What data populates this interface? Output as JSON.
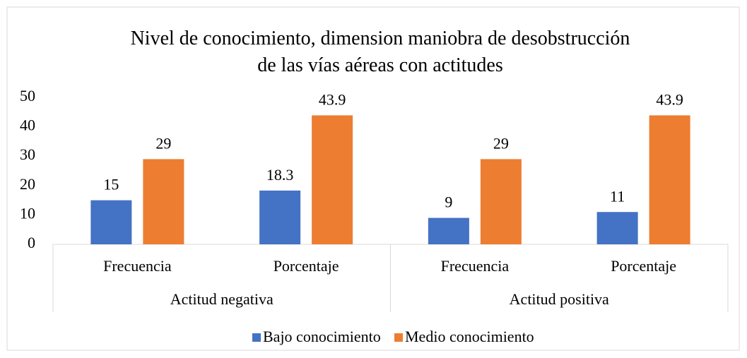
{
  "chart_data": {
    "type": "bar",
    "title": "Nivel de conocimiento, dimension maniobra de desobstrucción de las vías aéreas con actitudes",
    "groups": [
      {
        "name": "Actitud negativa",
        "categories": [
          "Frecuencia",
          "Porcentaje"
        ]
      },
      {
        "name": "Actitud positiva",
        "categories": [
          "Frecuencia",
          "Porcentaje"
        ]
      }
    ],
    "series": [
      {
        "name": "Bajo conocimiento",
        "color": "#4472c4",
        "values": [
          15,
          18.3,
          9,
          11
        ]
      },
      {
        "name": "Medio conocimiento",
        "color": "#ed7d31",
        "values": [
          29,
          43.9,
          29,
          43.9
        ]
      }
    ],
    "ylim": [
      0,
      50
    ],
    "yticks": [
      0,
      10,
      20,
      30,
      40,
      50
    ],
    "grid": false,
    "legend": "bottom"
  }
}
